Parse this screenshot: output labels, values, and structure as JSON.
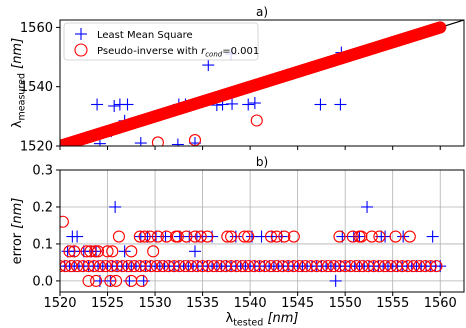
{
  "chart_data": [
    {
      "type": "scatter",
      "title": "a)",
      "xlim": [
        1520,
        1562.5
      ],
      "ylim": [
        1520,
        1562.5
      ],
      "yticks": [
        1520,
        1540,
        1560
      ],
      "grid": false,
      "legend": "top-left",
      "ylabel": {
        "main": "λ",
        "sub": "measured",
        "unit": "[nm]"
      },
      "reference_line": {
        "color": "#000000",
        "from": [
          1520,
          1520
        ],
        "to": [
          1562.5,
          1562.5
        ]
      },
      "series": [
        {
          "name": "Least Mean Square",
          "marker": "plus",
          "color": "#0000ff",
          "note_x_range": [
            1520,
            1560
          ],
          "note_x_step": 0.1,
          "points": [
            [
              1523.9,
              1534
            ],
            [
              1525.7,
              1533.5
            ],
            [
              1526.3,
              1534
            ],
            [
              1527.1,
              1534
            ],
            [
              1526.8,
              1528.5
            ],
            [
              1525.4,
              1525
            ],
            [
              1532.5,
              1534
            ],
            [
              1533.2,
              1534
            ],
            [
              1535.6,
              1547.3
            ],
            [
              1536.5,
              1533.8
            ],
            [
              1538,
              1551
            ],
            [
              1538.1,
              1534.2
            ],
            [
              1537.1,
              1534
            ],
            [
              1539.8,
              1534
            ],
            [
              1540.5,
              1534.5
            ],
            [
              1547.4,
              1534
            ],
            [
              1549.5,
              1534
            ],
            [
              1549.6,
              1551.5
            ],
            [
              1524.2,
              1520.8
            ],
            [
              1528.5,
              1521
            ],
            [
              1532.4,
              1520.5
            ],
            [
              1534.2,
              1521
            ]
          ]
        },
        {
          "name_parts": {
            "prefix": "Pseudo-inverse with ",
            "r": "r",
            "sub": "cond",
            "suffix": "=0.001"
          },
          "marker": "circle",
          "color": "#ff0000",
          "note_x_range": [
            1520,
            1560
          ],
          "note_x_step": 0.1,
          "points": [
            [
              1530.3,
              1521.2
            ],
            [
              1534.2,
              1522
            ],
            [
              1540.7,
              1528.6
            ]
          ]
        }
      ]
    },
    {
      "type": "scatter",
      "title": "b)",
      "xlim": [
        1520,
        1562.5
      ],
      "ylim": [
        -0.03,
        0.3
      ],
      "xticks": [
        1520,
        1525,
        1530,
        1535,
        1540,
        1545,
        1550,
        1555,
        1560
      ],
      "yticks": [
        0.0,
        0.1,
        0.2,
        0.3
      ],
      "ytick_labels": [
        "0.0",
        "0.1",
        "0.2",
        "0.3"
      ],
      "grid": true,
      "xlabel": {
        "main": "λ",
        "sub": "tested",
        "unit": "[nm]"
      },
      "ylabel": {
        "main": "error",
        "unit": "[nm]"
      },
      "series": [
        {
          "marker": "plus",
          "color": "#0000ff",
          "dense_x_range": [
            1520,
            1560
          ],
          "dense_x_step": 0.5,
          "dense_value": 0.04,
          "points": [
            [
              1521.3,
              0.12
            ],
            [
              1521.8,
              0.12
            ],
            [
              1520.8,
              0.08
            ],
            [
              1521.5,
              0.08
            ],
            [
              1522.5,
              0.08
            ],
            [
              1523.3,
              0.08
            ],
            [
              1523.8,
              0.08
            ],
            [
              1525.8,
              0.2
            ],
            [
              1524.2,
              0.0
            ],
            [
              1525.3,
              0.0
            ],
            [
              1527.3,
              0.0
            ],
            [
              1528.8,
              0.0
            ],
            [
              1528.5,
              0.12
            ],
            [
              1529.2,
              0.12
            ],
            [
              1530.1,
              0.12
            ],
            [
              1531.1,
              0.12
            ],
            [
              1532.6,
              0.12
            ],
            [
              1533.6,
              0.12
            ],
            [
              1534.4,
              0.12
            ],
            [
              1535,
              0.12
            ],
            [
              1536,
              0.12
            ],
            [
              1538.5,
              0.12
            ],
            [
              1540.2,
              0.12
            ],
            [
              1541.2,
              0.12
            ],
            [
              1542.3,
              0.12
            ],
            [
              1543.3,
              0.12
            ],
            [
              1549.7,
              0.12
            ],
            [
              1550.9,
              0.12
            ],
            [
              1551.5,
              0.12
            ],
            [
              1552.3,
              0.2
            ],
            [
              1553.8,
              0.12
            ],
            [
              1554.2,
              0.12
            ],
            [
              1556.1,
              0.12
            ],
            [
              1559.2,
              0.12
            ],
            [
              1534.2,
              0.08
            ],
            [
              1526.8,
              0.08
            ],
            [
              1549,
              0.0
            ]
          ]
        },
        {
          "marker": "circle",
          "color": "#ff0000",
          "dense_x_range": [
            1520,
            1560
          ],
          "dense_x_step": 0.6,
          "dense_value": 0.04,
          "points": [
            [
              1520.3,
              0.16
            ],
            [
              1521,
              0.08
            ],
            [
              1521.5,
              0.08
            ],
            [
              1522.8,
              0.08
            ],
            [
              1523.2,
              0.08
            ],
            [
              1523.7,
              0.08
            ],
            [
              1524,
              0.08
            ],
            [
              1525,
              0.08
            ],
            [
              1525.5,
              0.08
            ],
            [
              1523,
              0.0
            ],
            [
              1523.8,
              0.0
            ],
            [
              1525.3,
              0.0
            ],
            [
              1525.9,
              0.0
            ],
            [
              1527.5,
              0.0
            ],
            [
              1528.6,
              0.0
            ],
            [
              1526.2,
              0.12
            ],
            [
              1528.4,
              0.12
            ],
            [
              1528.9,
              0.12
            ],
            [
              1529.5,
              0.12
            ],
            [
              1530.3,
              0.12
            ],
            [
              1531.2,
              0.12
            ],
            [
              1532.4,
              0.12
            ],
            [
              1533.3,
              0.12
            ],
            [
              1534.2,
              0.12
            ],
            [
              1534.8,
              0.12
            ],
            [
              1535.5,
              0.12
            ],
            [
              1537.6,
              0.12
            ],
            [
              1538,
              0.12
            ],
            [
              1539.4,
              0.12
            ],
            [
              1539.8,
              0.12
            ],
            [
              1542.2,
              0.12
            ],
            [
              1542.8,
              0.12
            ],
            [
              1543.6,
              0.12
            ],
            [
              1544.6,
              0.12
            ],
            [
              1549.4,
              0.12
            ],
            [
              1550.8,
              0.12
            ],
            [
              1551.5,
              0.12
            ],
            [
              1551.7,
              0.12
            ],
            [
              1552.8,
              0.12
            ],
            [
              1553.6,
              0.12
            ],
            [
              1555.3,
              0.12
            ],
            [
              1556.8,
              0.12
            ],
            [
              1527.5,
              0.08
            ],
            [
              1529.8,
              0.08
            ],
            [
              1532.2,
              0.12
            ]
          ]
        }
      ]
    }
  ]
}
